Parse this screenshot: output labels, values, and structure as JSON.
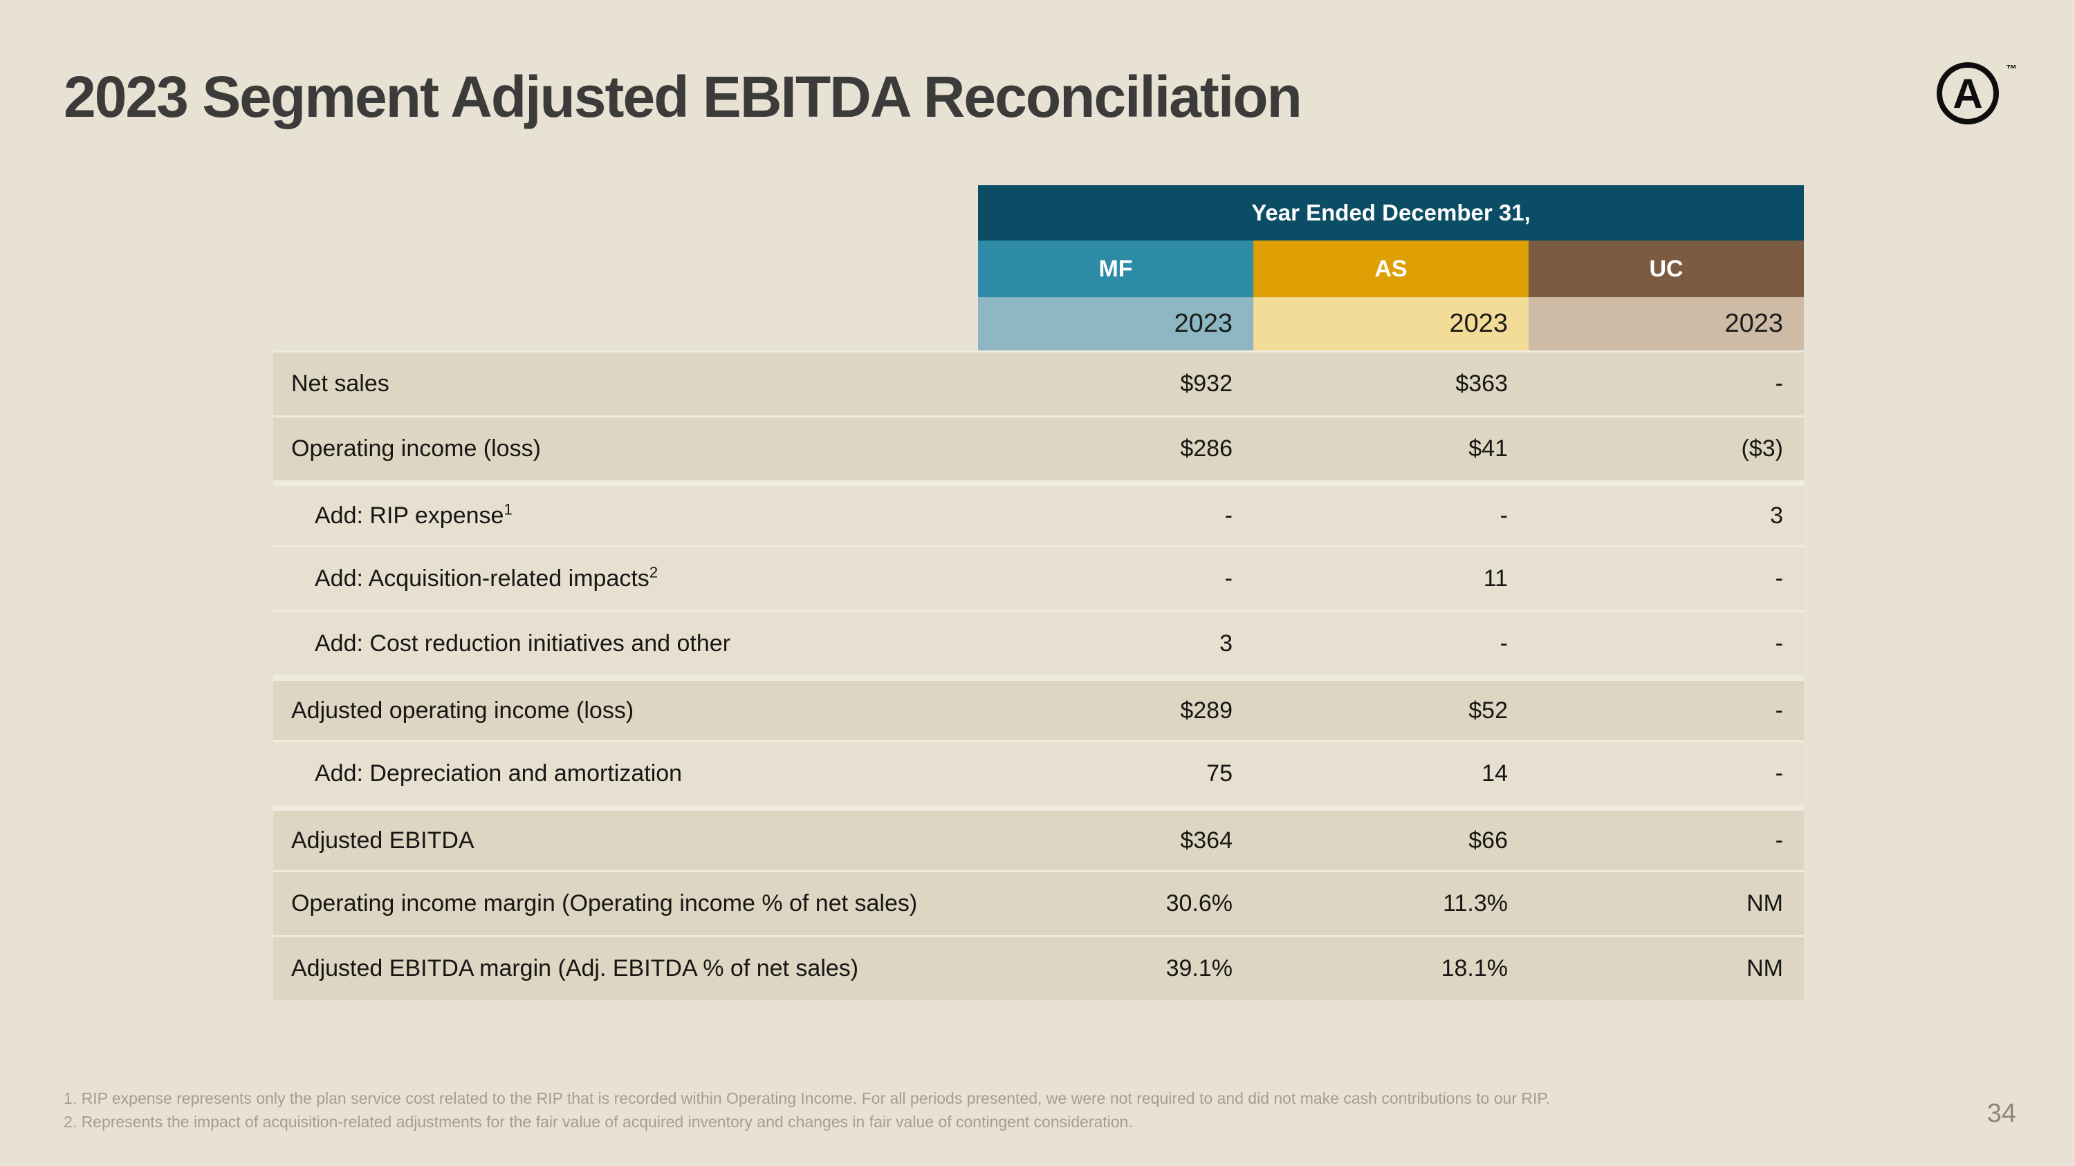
{
  "slide": {
    "title": "2023 Segment Adjusted EBITDA Reconciliation",
    "page_number": "34",
    "logo": {
      "letter": "A",
      "trademark": "™"
    }
  },
  "table": {
    "header": {
      "span_label": "Year Ended December 31,",
      "columns": [
        {
          "label": "MF",
          "year": "2023",
          "band_color": "#2e8ba7",
          "year_band_color": "#8db8c3"
        },
        {
          "label": "AS",
          "year": "2023",
          "band_color": "#dd9f03",
          "year_band_color": "#f3db98"
        },
        {
          "label": "UC",
          "year": "2023",
          "band_color": "#7b5c42",
          "year_band_color": "#cebba6"
        }
      ]
    },
    "rows": [
      {
        "label": "Net sales",
        "indent": false,
        "shade": "dark",
        "separator": "thin",
        "values": [
          "$932",
          "$363",
          "-"
        ]
      },
      {
        "label": "Operating income (loss)",
        "indent": false,
        "shade": "dark",
        "separator": "thin",
        "values": [
          "$286",
          "$41",
          "($3)"
        ]
      },
      {
        "label": "Add: RIP expense",
        "footnote_ref": "1",
        "indent": true,
        "shade": "light",
        "separator": "thick",
        "values": [
          "-",
          "-",
          "3"
        ]
      },
      {
        "label": "Add: Acquisition-related impacts",
        "footnote_ref": "2",
        "indent": true,
        "shade": "light",
        "separator": "thin",
        "values": [
          "-",
          "11",
          "-"
        ]
      },
      {
        "label": "Add: Cost reduction initiatives and other",
        "indent": true,
        "shade": "light",
        "separator": "thin",
        "values": [
          "3",
          "-",
          "-"
        ]
      },
      {
        "label": "Adjusted operating income (loss)",
        "indent": false,
        "shade": "dark",
        "separator": "thick",
        "values": [
          "$289",
          "$52",
          "-"
        ]
      },
      {
        "label": "Add: Depreciation and amortization",
        "indent": true,
        "shade": "light",
        "separator": "thin",
        "values": [
          "75",
          "14",
          "-"
        ]
      },
      {
        "label": "Adjusted EBITDA",
        "indent": false,
        "shade": "dark",
        "separator": "thick",
        "values": [
          "$364",
          "$66",
          "-"
        ]
      },
      {
        "label": "Operating income margin (Operating income % of net sales)",
        "indent": false,
        "shade": "dark",
        "separator": "thin",
        "values": [
          "30.6%",
          "11.3%",
          "NM"
        ]
      },
      {
        "label": "Adjusted EBITDA margin (Adj. EBITDA % of net sales)",
        "indent": false,
        "shade": "dark",
        "separator": "thin",
        "values": [
          "39.1%",
          "18.1%",
          "NM"
        ]
      }
    ]
  },
  "footnotes": [
    "1. RIP expense represents only the plan service cost related to the RIP that is recorded within Operating Income. For all periods presented, we were not required to and did not make cash contributions to our RIP.",
    "2. Represents the impact of acquisition-related adjustments for the fair value of acquired inventory and changes in fair value of contingent consideration."
  ],
  "colors": {
    "page_bg": "#e8e2d4",
    "title_text": "#3b3b39",
    "header_span_band": "#0b4d64",
    "row_dark": "#ded6c2",
    "row_light": "#e7e0d0",
    "separator": "#f0ebdf",
    "footnote_text": "#a49e90",
    "page_number_text": "#8b8679"
  }
}
